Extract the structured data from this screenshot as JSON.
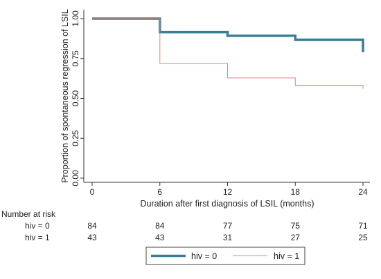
{
  "chart_data": {
    "type": "line",
    "ylabel": "Proportion of spontaneous regression of LSIL",
    "xlabel": "Duration after first diagnosis of LSIL (months)",
    "xlim": [
      0,
      24
    ],
    "ylim": [
      0,
      1
    ],
    "x_ticks": [
      "0",
      "6",
      "12",
      "18",
      "24"
    ],
    "y_ticks": [
      "0.00",
      "0.25",
      "0.50",
      "0.75",
      "1.00"
    ],
    "grid": false,
    "step": true,
    "colors": {
      "hiv0": "#3a7d96",
      "hiv1": "#e58080"
    },
    "series": [
      {
        "name": "hiv = 0",
        "points": [
          [
            0,
            1.0
          ],
          [
            6,
            1.0
          ],
          [
            6,
            0.915
          ],
          [
            12,
            0.915
          ],
          [
            12,
            0.893
          ],
          [
            18,
            0.893
          ],
          [
            18,
            0.868
          ],
          [
            24,
            0.868
          ],
          [
            24,
            0.79
          ]
        ]
      },
      {
        "name": "hiv = 1",
        "points": [
          [
            0,
            1.0
          ],
          [
            6,
            1.0
          ],
          [
            6,
            0.72
          ],
          [
            12,
            0.72
          ],
          [
            12,
            0.628
          ],
          [
            18,
            0.628
          ],
          [
            18,
            0.582
          ],
          [
            24,
            0.582
          ],
          [
            24,
            0.562
          ]
        ]
      }
    ],
    "legend": {
      "position": "bottom",
      "entries": [
        "hiv = 0",
        "hiv = 1"
      ]
    },
    "risk_table": {
      "title": "Number at risk",
      "rows": [
        {
          "label": "hiv = 0",
          "values": [
            "84",
            "84",
            "77",
            "75",
            "71"
          ]
        },
        {
          "label": "hiv = 1",
          "values": [
            "43",
            "43",
            "31",
            "27",
            "25"
          ]
        }
      ]
    }
  }
}
